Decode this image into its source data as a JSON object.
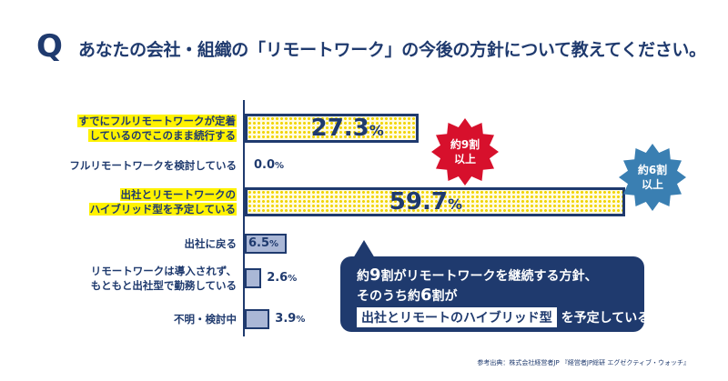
{
  "question": {
    "mark": "Q",
    "text": "あなたの会社・組織の「リモートワーク」の今後の方針について教えてください。"
  },
  "chart_data": {
    "type": "bar",
    "orientation": "horizontal",
    "unit": "%",
    "categories": [
      [
        "すでにフルリモートワークが定着",
        "しているのでこのまま続行する"
      ],
      [
        "フルリモートワークを検討している"
      ],
      [
        "出社とリモートワークの",
        "ハイブリッド型を予定している"
      ],
      [
        "出社に戻る"
      ],
      [
        "リモートワークは導入されず、",
        "もともと出社型で勤務している"
      ],
      [
        "不明・検討中"
      ]
    ],
    "values": [
      27.3,
      0.0,
      59.7,
      6.5,
      2.6,
      3.9
    ],
    "value_labels": [
      "27.3",
      "0.0",
      "59.7",
      "6.5",
      "2.6",
      "3.9"
    ],
    "highlighted": [
      true,
      false,
      true,
      false,
      false,
      false
    ],
    "colors": {
      "highlight_fill": "#f2d400",
      "plain_fill": "#aab7d6",
      "navy": "#1f3a6e",
      "red_badge": "#d7102c",
      "blue_badge": "#3a7fb2"
    }
  },
  "badges": {
    "red": [
      "約9割",
      "以上"
    ],
    "blue": [
      "約6割",
      "以上"
    ]
  },
  "callout": {
    "line1_prefix": "約",
    "line1_num": "9",
    "line1_rest": "割がリモートワークを継続する方針、",
    "line2_prefix": "そのうち約",
    "line2_num": "6",
    "line2_rest": "割が",
    "line3_boxed": "出社とリモートのハイブリッド型",
    "line3_rest": "を予定している"
  },
  "source": "参考出典：株式会社経営者JP 『経営者JP総研 エグゼクティブ・ウォッチ』"
}
